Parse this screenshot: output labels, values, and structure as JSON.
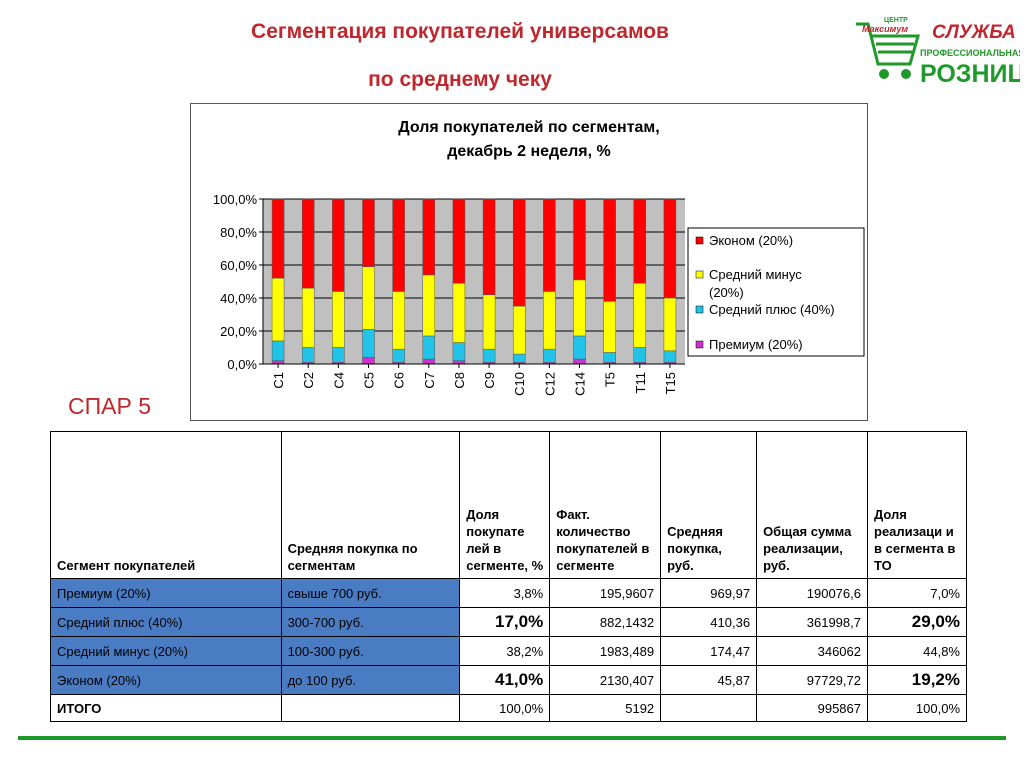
{
  "header": {
    "title_line1": "Сегментация покупателей универсамов",
    "title_line2": "по среднему чеку"
  },
  "logo": {
    "small_top": "ЦЕНТР",
    "small_name": "Максимум",
    "line1": "СЛУЖБА",
    "line2": "ПРОФЕССИОНАЛЬНАЯ",
    "line3": "РОЗНИЦА",
    "brand_color": "#1f9a2a",
    "accent_color": "#c0272d"
  },
  "store_label": "СПАР 5",
  "colors": {
    "ekonom": "#ff0000",
    "minus": "#ffff00",
    "plus": "#22c3e8",
    "premium": "#cc33cc",
    "table_highlight": "#4a7cc3",
    "title": "#c0272d",
    "plot_bg": "#c0c0c0"
  },
  "chart_data": {
    "type": "bar",
    "stacked": true,
    "title": "Доля покупателей по сегментам, декабрь 2 неделя, %",
    "title_lines": [
      "Доля покупателей по сегментам,",
      "декабрь 2 неделя, %"
    ],
    "categories": [
      "C1",
      "C2",
      "C4",
      "C5",
      "C6",
      "C7",
      "C8",
      "C9",
      "C10",
      "C12",
      "C14",
      "T5",
      "T11",
      "T15"
    ],
    "ylim": [
      0,
      100
    ],
    "yticks": [
      "100,0%",
      "80,0%",
      "60,0%",
      "40,0%",
      "20,0%",
      "0,0%"
    ],
    "legend_position": "right",
    "series": [
      {
        "name": "Премиум (20%)",
        "values": [
          2,
          1,
          1,
          4,
          1,
          3,
          2,
          1,
          1,
          1,
          3,
          1,
          1,
          1
        ]
      },
      {
        "name": "Средний плюс (40%)",
        "values": [
          12,
          9,
          9,
          17,
          8,
          14,
          11,
          8,
          5,
          8,
          14,
          6,
          9,
          7
        ]
      },
      {
        "name": "Средний минус (20%)",
        "values": [
          38,
          36,
          34,
          38,
          35,
          37,
          36,
          33,
          29,
          35,
          34,
          31,
          39,
          32
        ]
      },
      {
        "name": "Эконом (20%)",
        "values": [
          48,
          54,
          56,
          41,
          56,
          46,
          51,
          58,
          65,
          56,
          49,
          62,
          51,
          60
        ]
      }
    ],
    "legend": [
      {
        "label_lines": [
          "Эконом (20%)"
        ],
        "color_key": "ekonom"
      },
      {
        "label_lines": [
          "Средний минус",
          "(20%)"
        ],
        "color_key": "minus"
      },
      {
        "label_lines": [
          "Средний плюс (40%)"
        ],
        "color_key": "plus"
      },
      {
        "label_lines": [
          "Премиум (20%)"
        ],
        "color_key": "premium"
      }
    ]
  },
  "table": {
    "headers": [
      "Сегмент покупателей",
      "Средняя покупка по сегментам",
      "Доля покупате лей в сегменте, %",
      "Факт. количество покупателей в сегменте",
      "Средняя покупка, руб.",
      "Общая сумма реализации, руб.",
      "Доля реализаци и в сегмента в ТО"
    ],
    "rows": [
      {
        "segment": "Премиум (20%)",
        "range": "свыше 700 руб.",
        "share": "3,8%",
        "count": "195,9607",
        "avg": "969,97",
        "sum": "190076,6",
        "rshare": "7,0%"
      },
      {
        "segment": "Средний плюс (40%)",
        "range": "300-700 руб.",
        "share": "17,0%",
        "count": "882,1432",
        "avg": "410,36",
        "sum": "361998,7",
        "rshare": "29,0%"
      },
      {
        "segment": "Средний минус (20%)",
        "range": "100-300 руб.",
        "share": "38,2%",
        "count": "1983,489",
        "avg": "174,47",
        "sum": "346062",
        "rshare": "44,8%"
      },
      {
        "segment": "Эконом (20%)",
        "range": "до 100 руб.",
        "share": "41,0%",
        "count": "2130,407",
        "avg": "45,87",
        "sum": "97729,72",
        "rshare": "19,2%"
      }
    ],
    "total": {
      "segment": "ИТОГО",
      "range": "",
      "share": "100,0%",
      "count": "5192",
      "avg": "",
      "sum": "995867",
      "rshare": "100,0%"
    }
  }
}
